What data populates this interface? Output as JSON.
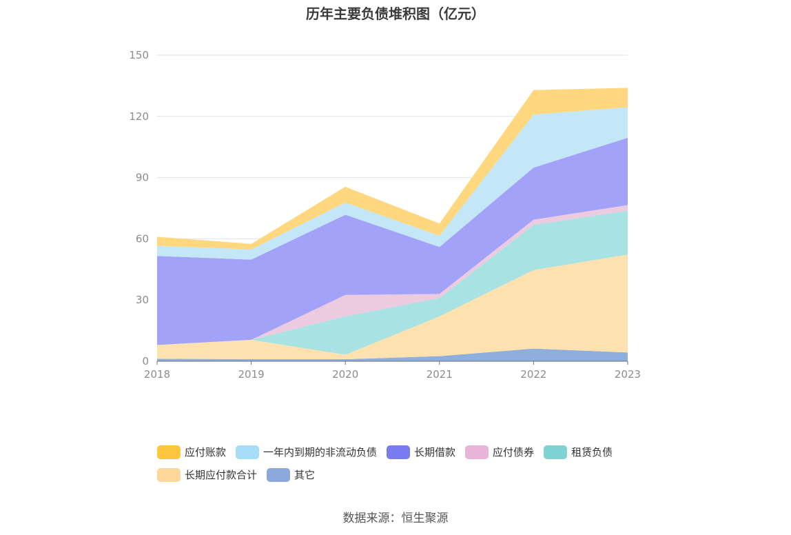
{
  "chart_data": {
    "type": "area",
    "title": "历年主要负债堆积图（亿元）",
    "categories": [
      "2018",
      "2019",
      "2020",
      "2021",
      "2022",
      "2023"
    ],
    "ylim": [
      0,
      150
    ],
    "yticks": [
      0,
      30,
      60,
      90,
      120,
      150
    ],
    "grid": true,
    "legend_position": "bottom",
    "series": [
      {
        "name": "其它",
        "color": "#8eaede",
        "values": [
          1.2,
          1.0,
          1.0,
          2.5,
          6.2,
          4.3
        ]
      },
      {
        "name": "长期应付款合计",
        "color": "#fde2b0",
        "values": [
          6.8,
          9.5,
          2.2,
          19.5,
          38.5,
          48.0
        ]
      },
      {
        "name": "租赁负债",
        "color": "#a8e2e2",
        "values": [
          0,
          0,
          18.8,
          9.0,
          22.2,
          21.5
        ]
      },
      {
        "name": "应付债券",
        "color": "#eccae0",
        "values": [
          0,
          0,
          10.5,
          2.0,
          2.5,
          2.7
        ]
      },
      {
        "name": "长期借款",
        "color": "#a1a2f8",
        "values": [
          43.6,
          39.3,
          39.3,
          23.0,
          25.5,
          33.0
        ]
      },
      {
        "name": "一年内到期的非流动负债",
        "color": "#c4e7f8",
        "values": [
          5.0,
          5.0,
          6.0,
          5.5,
          26.0,
          15.0
        ]
      },
      {
        "name": "应付账款",
        "color": "#fed77e",
        "values": [
          4.4,
          2.7,
          7.7,
          6.0,
          12.0,
          9.5
        ]
      }
    ]
  },
  "legend": {
    "row1": [
      {
        "label": "应付账款",
        "color": "#fdc63f"
      },
      {
        "label": "一年内到期的非流动负债",
        "color": "#a6ddf6"
      },
      {
        "label": "长期借款",
        "color": "#7b7bf0"
      },
      {
        "label": "应付债券",
        "color": "#e8b5d8"
      },
      {
        "label": "租赁负债",
        "color": "#7ed2d2"
      }
    ],
    "row2": [
      {
        "label": "长期应付款合计",
        "color": "#fdd79a"
      },
      {
        "label": "其它",
        "color": "#8aa8dc"
      }
    ]
  },
  "source": "数据来源：恒生聚源"
}
